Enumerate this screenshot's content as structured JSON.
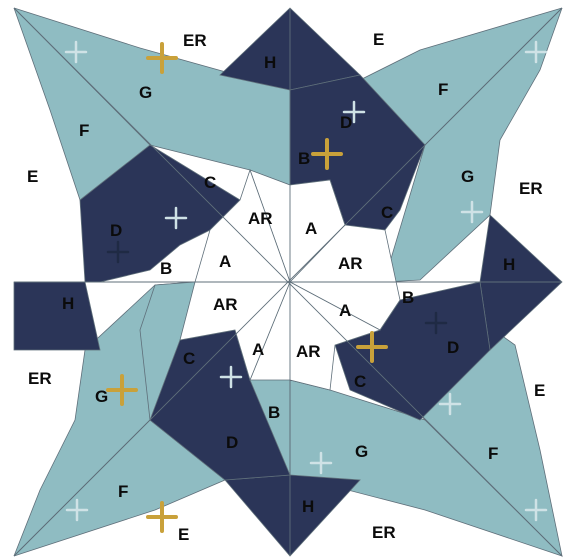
{
  "diagram": {
    "colors": {
      "navy": "#2b3558",
      "teal": "#8fbcc2",
      "white": "#ffffff",
      "seam": "#5f6f7a",
      "gold": "#c9a13a",
      "cross_light": "#cfe2e6",
      "cross_dark": "#1f2a44"
    },
    "labels": {
      "er_1": "ER",
      "e_1": "E",
      "h_1": "H",
      "g_1": "G",
      "f_1": "F",
      "d_1": "D",
      "b_1": "B",
      "c_1": "C",
      "ar_1": "AR",
      "a_1": "A",
      "e_2": "E",
      "f_2": "F",
      "g_2": "G",
      "er_2": "ER",
      "c_2": "C",
      "ar_2": "AR",
      "h_2": "H",
      "d_2": "D",
      "a_2": "A",
      "b_2": "B",
      "h_3": "H",
      "ar_3": "AR",
      "a_3": "A",
      "c_3": "C",
      "a_4": "A",
      "ar_4": "AR",
      "er_3": "ER",
      "g_3": "G",
      "d_3": "D",
      "b_3": "B",
      "c_4": "C",
      "e_3": "E",
      "d_4": "D",
      "b_4": "B",
      "g_4": "G",
      "f_3": "F",
      "f_4": "F",
      "e_4": "E",
      "h_4": "H",
      "er_4": "ER"
    }
  }
}
